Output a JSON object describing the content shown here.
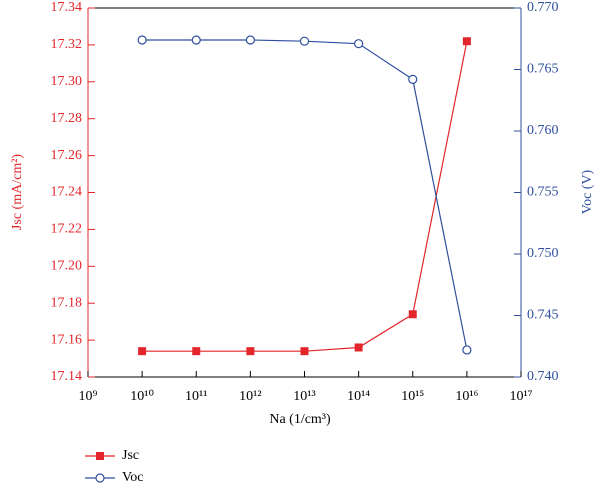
{
  "chart_data": {
    "type": "line",
    "x": [
      10000000000.0,
      100000000000.0,
      1000000000000.0,
      10000000000000.0,
      100000000000000.0,
      1000000000000000.0,
      1e+16
    ],
    "xlabel": "Na (1/cm³)",
    "ylabel": "Jsc (mA/cm²)",
    "y2label": "Voc (V)",
    "xscale": "log",
    "xlim": [
      1000000000.0,
      1e+17
    ],
    "xticks": [
      {
        "value": 1000000000.0,
        "label": "10⁹"
      },
      {
        "value": 10000000000.0,
        "label": "10¹⁰"
      },
      {
        "value": 100000000000.0,
        "label": "10¹¹"
      },
      {
        "value": 1000000000000.0,
        "label": "10¹²"
      },
      {
        "value": 10000000000000.0,
        "label": "10¹³"
      },
      {
        "value": 100000000000000.0,
        "label": "10¹⁴"
      },
      {
        "value": 1000000000000000.0,
        "label": "10¹⁵"
      },
      {
        "value": 1e+16,
        "label": "10¹⁶"
      },
      {
        "value": 1e+17,
        "label": "10¹⁷"
      }
    ],
    "ylim": [
      17.14,
      17.34
    ],
    "yticks": [
      17.14,
      17.16,
      17.18,
      {
        "value": 17.2,
        "label": "17.20"
      },
      17.22,
      17.24,
      17.26,
      17.28,
      {
        "value": 17.3,
        "label": "17.30"
      },
      17.32,
      17.34
    ],
    "y2lim": [
      0.74,
      0.77
    ],
    "y2ticks": [
      {
        "value": 0.74,
        "label": "0.740"
      },
      0.745,
      {
        "value": 0.75,
        "label": "0.750"
      },
      0.755,
      {
        "value": 0.76,
        "label": "0.760"
      },
      0.765,
      {
        "value": 0.77,
        "label": "0.770"
      }
    ],
    "series": [
      {
        "name": "Jsc",
        "color": "#e3262b",
        "marker": "square",
        "values": [
          17.154,
          17.154,
          17.154,
          17.154,
          17.156,
          17.174,
          17.322
        ]
      },
      {
        "name": "Voc",
        "color": "#2f4f9e",
        "marker": "circle",
        "axis": "y2",
        "values": [
          0.7674,
          0.7674,
          0.7674,
          0.7673,
          0.7671,
          0.7642,
          0.7422
        ]
      }
    ]
  }
}
